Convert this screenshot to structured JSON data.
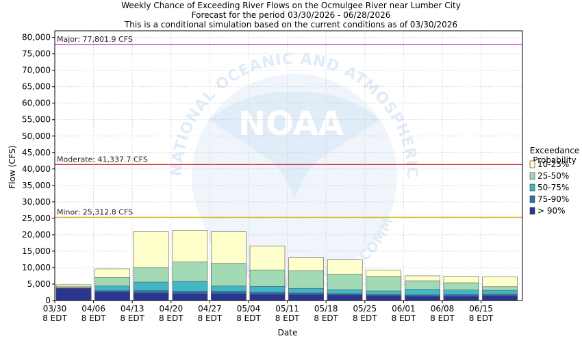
{
  "chart_data": {
    "type": "bar",
    "stacked": true,
    "title": [
      "Weekly Chance of Exceeding River Flows on the Ocmulgee River near Lumber City",
      "Forecast for the period 03/30/2026 - 06/28/2026",
      "This is a conditional simulation based on the current conditions as of 03/30/2026"
    ],
    "xlabel": "Date",
    "ylabel": "Flow (CFS)",
    "ylim": [
      0,
      82000
    ],
    "yticks": [
      0,
      5000,
      10000,
      15000,
      20000,
      25000,
      30000,
      35000,
      40000,
      45000,
      50000,
      55000,
      60000,
      65000,
      70000,
      75000,
      80000
    ],
    "ytick_labels": [
      "0",
      "5,000",
      "10,000",
      "15,000",
      "20,000",
      "25,000",
      "30,000",
      "35,000",
      "40,000",
      "45,000",
      "50,000",
      "55,000",
      "60,000",
      "65,000",
      "70,000",
      "75,000",
      "80,000"
    ],
    "grid": true,
    "categories": [
      [
        "03/30",
        "8 EDT"
      ],
      [
        "04/06",
        "8 EDT"
      ],
      [
        "04/13",
        "8 EDT"
      ],
      [
        "04/20",
        "8 EDT"
      ],
      [
        "04/27",
        "8 EDT"
      ],
      [
        "05/04",
        "8 EDT"
      ],
      [
        "05/11",
        "8 EDT"
      ],
      [
        "05/18",
        "8 EDT"
      ],
      [
        "05/25",
        "8 EDT"
      ],
      [
        "06/01",
        "8 EDT"
      ],
      [
        "06/08",
        "8 EDT"
      ],
      [
        "06/15",
        "8 EDT"
      ]
    ],
    "series": [
      {
        "name": "> 90%",
        "color": "#2a3590",
        "values": [
          3700,
          2600,
          2300,
          2100,
          2100,
          1900,
          1800,
          1700,
          1500,
          1300,
          1300,
          1500
        ]
      },
      {
        "name": "75-90%",
        "color": "#2d73b3",
        "values": [
          3800,
          3000,
          3000,
          2800,
          2800,
          2500,
          2300,
          2100,
          1800,
          1700,
          1800,
          1900
        ]
      },
      {
        "name": "50-75%",
        "color": "#41b6c4",
        "values": [
          3800,
          4400,
          5600,
          5800,
          4400,
          4300,
          3700,
          3300,
          2900,
          3400,
          3200,
          3100
        ]
      },
      {
        "name": "25-50%",
        "color": "#a1dab4",
        "values": [
          4200,
          7000,
          10000,
          11700,
          11300,
          9300,
          9000,
          8000,
          7300,
          6000,
          5400,
          4200
        ]
      },
      {
        "name": "10-25%",
        "color": "#ffffcc",
        "values": [
          4800,
          9600,
          20900,
          21300,
          20900,
          16600,
          13000,
          12400,
          9200,
          7500,
          7400,
          7200
        ]
      }
    ],
    "legend": {
      "title": [
        "Exceedance",
        "Probability"
      ],
      "placement": "right",
      "entries": [
        "10-25%",
        "25-50%",
        "50-75%",
        "75-90%",
        "> 90%"
      ]
    },
    "reference_lines": [
      {
        "label": "Major: 77,801.9 CFS",
        "value": 77801.9,
        "color": "#cc33cc"
      },
      {
        "label": "Moderate: 41,337.7 CFS",
        "value": 41337.7,
        "color": "#d62728"
      },
      {
        "label": "Minor: 25,312.8 CFS",
        "value": 25312.8,
        "color": "#e0a800"
      }
    ],
    "watermark": {
      "logo_text": "NOAA",
      "ring_text_top": "NATIONAL OCEANIC AND ATMOSPHERIC ADMINISTRATION",
      "ring_text_bottom": "U.S. DEPARTMENT OF COMMERCE"
    }
  }
}
